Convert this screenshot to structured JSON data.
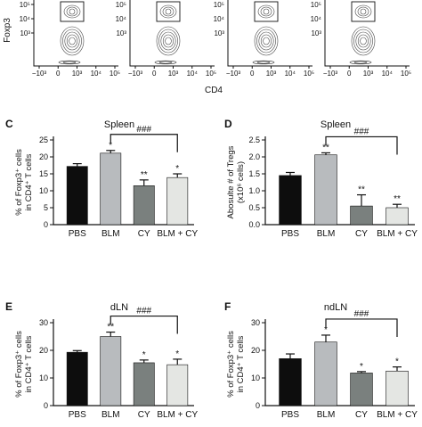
{
  "flow": {
    "ylabel": "Foxp3",
    "xlabel": "CD4",
    "x_ticks": [
      "−10³",
      "0",
      "10³",
      "10⁴",
      "10⁵"
    ],
    "y_ticks": [
      "10⁵",
      "10⁴",
      "10³"
    ],
    "panels": [
      0,
      1,
      2,
      3
    ]
  },
  "chart_data": [
    {
      "type": "bar",
      "panel": "C",
      "title": "Spleen",
      "ylabel_lines": [
        "% of Foxp3⁺ cells",
        "in CD4⁺ T cells"
      ],
      "categories": [
        "PBS",
        "BLM",
        "CY",
        "BLM + CY"
      ],
      "values": [
        17.2,
        21.1,
        11.5,
        13.9
      ],
      "errors": [
        0.8,
        0.8,
        1.7,
        1.1
      ],
      "colors": [
        "#0d0d0d",
        "#b8bbbe",
        "#7a807e",
        "#e4e6e3"
      ],
      "significance": [
        "",
        "*",
        "**",
        "*"
      ],
      "bracket": {
        "from": 1,
        "to": 3,
        "label": "###"
      },
      "ylim": [
        0,
        25
      ],
      "yticks": [
        "0",
        "5",
        "10",
        "15",
        "20",
        "25"
      ]
    },
    {
      "type": "bar",
      "panel": "D",
      "title": "Spleen",
      "ylabel_lines": [
        "Abosulte # of Tregs",
        "(x10⁶ cells)"
      ],
      "categories": [
        "PBS",
        "BLM",
        "CY",
        "BLM + CY"
      ],
      "values": [
        1.45,
        2.06,
        0.55,
        0.5
      ],
      "errors": [
        0.09,
        0.06,
        0.33,
        0.1
      ],
      "colors": [
        "#0d0d0d",
        "#b8bbbe",
        "#7a807e",
        "#e4e6e3"
      ],
      "significance": [
        "",
        "**",
        "**",
        "**"
      ],
      "bracket": {
        "from": 1,
        "to": 3,
        "label": "###"
      },
      "ylim": [
        0,
        2.5
      ],
      "yticks": [
        "0.0",
        "0.5",
        "1.0",
        "1.5",
        "2.0",
        "2.5"
      ]
    },
    {
      "type": "bar",
      "panel": "E",
      "title": "dLN",
      "ylabel_lines": [
        "% of Foxp3⁺ cells",
        "in CD4⁺ T cells"
      ],
      "categories": [
        "PBS",
        "BLM",
        "CY",
        "BLM + CY"
      ],
      "values": [
        19.3,
        25.0,
        15.5,
        14.8
      ],
      "errors": [
        0.6,
        1.6,
        1.0,
        2.0
      ],
      "colors": [
        "#0d0d0d",
        "#b8bbbe",
        "#7a807e",
        "#e4e6e3"
      ],
      "significance": [
        "",
        "**",
        "*",
        "*"
      ],
      "bracket": {
        "from": 1,
        "to": 3,
        "label": "###"
      },
      "ylim": [
        0,
        30
      ],
      "yticks": [
        "0",
        "10",
        "20",
        "30"
      ]
    },
    {
      "type": "bar",
      "panel": "F",
      "title": "ndLN",
      "ylabel_lines": [
        "% of Foxp3⁺ cells",
        "in CD4⁺ T cells"
      ],
      "categories": [
        "PBS",
        "BLM",
        "CY",
        "BLM + CY"
      ],
      "values": [
        17.0,
        23.0,
        11.8,
        12.5
      ],
      "errors": [
        1.7,
        2.5,
        0.5,
        1.5
      ],
      "colors": [
        "#0d0d0d",
        "#b8bbbe",
        "#7a807e",
        "#e4e6e3"
      ],
      "significance": [
        "",
        "*",
        "*",
        "*"
      ],
      "bracket": {
        "from": 1,
        "to": 3,
        "label": "###"
      },
      "ylim": [
        0,
        30
      ],
      "yticks": [
        "0",
        "10",
        "20",
        "30"
      ]
    }
  ]
}
